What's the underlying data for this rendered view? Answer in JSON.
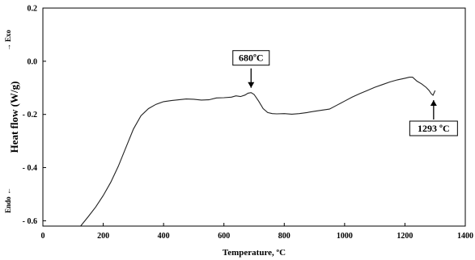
{
  "chart_data": {
    "type": "line",
    "xlabel": "Temperature, ºC",
    "ylabel": "Heat flow (W/g)",
    "xlim": [
      0,
      1400
    ],
    "ylim": [
      -0.62,
      0.2
    ],
    "xticks": [
      0,
      200,
      400,
      600,
      800,
      1000,
      1200,
      1400
    ],
    "xtick_labels": [
      "0",
      "200",
      "400",
      "600",
      "800",
      "1000",
      "1200",
      "1400"
    ],
    "yticks": [
      0.2,
      0.0,
      -0.2,
      -0.4,
      -0.6
    ],
    "ytick_labels": [
      "0.2",
      "0.0",
      "- 0.2",
      "- 0.4",
      "- 0.6"
    ],
    "grid": false,
    "exo_label": "→ Exo",
    "endo_label": "Endo ←",
    "annotations": [
      {
        "text": "680ºC",
        "x": 690,
        "y": -0.118,
        "direction": "down"
      },
      {
        "text": "1293 ºC",
        "x": 1295,
        "y": -0.128,
        "direction": "up"
      }
    ],
    "series": [
      {
        "x": [
          125,
          150,
          175,
          200,
          225,
          250,
          275,
          300,
          325,
          350,
          375,
          400,
          425,
          450,
          475,
          500,
          525,
          550,
          575,
          600,
          625,
          640,
          655,
          670,
          680,
          690,
          700,
          715,
          730,
          745,
          760,
          775,
          800,
          825,
          850,
          875,
          900,
          925,
          950,
          975,
          1000,
          1025,
          1050,
          1075,
          1100,
          1125,
          1150,
          1175,
          1200,
          1215,
          1225,
          1240,
          1255,
          1270,
          1280,
          1287,
          1293,
          1300
        ],
        "y": [
          -0.62,
          -0.585,
          -0.548,
          -0.505,
          -0.455,
          -0.395,
          -0.325,
          -0.255,
          -0.205,
          -0.178,
          -0.162,
          -0.152,
          -0.148,
          -0.145,
          -0.142,
          -0.143,
          -0.146,
          -0.145,
          -0.138,
          -0.137,
          -0.135,
          -0.13,
          -0.133,
          -0.127,
          -0.12,
          -0.118,
          -0.125,
          -0.15,
          -0.178,
          -0.193,
          -0.197,
          -0.198,
          -0.197,
          -0.199,
          -0.197,
          -0.193,
          -0.188,
          -0.184,
          -0.18,
          -0.165,
          -0.15,
          -0.135,
          -0.122,
          -0.11,
          -0.098,
          -0.088,
          -0.078,
          -0.07,
          -0.064,
          -0.06,
          -0.06,
          -0.075,
          -0.085,
          -0.098,
          -0.11,
          -0.122,
          -0.128,
          -0.11
        ]
      }
    ]
  }
}
